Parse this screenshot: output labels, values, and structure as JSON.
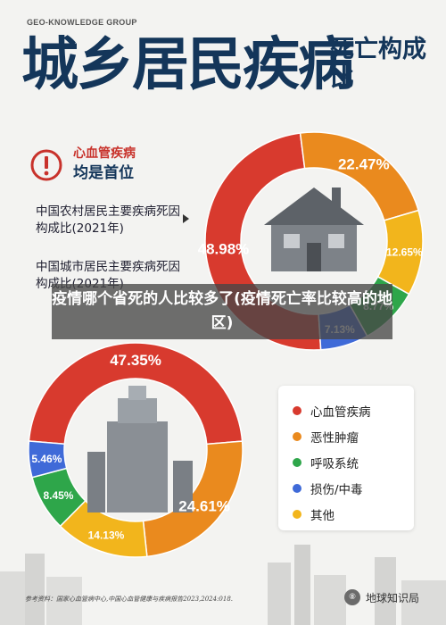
{
  "brand": "GEO-KNOWLEDGE GROUP",
  "title_main": "城乡居民疾病",
  "title_side": "死亡构成比",
  "warn": {
    "title": "心血管疾病",
    "subtitle": "均是首位"
  },
  "rural_label": "中国农村居民主要疾病死因构成比(2021年)",
  "urban_label": "中国城市居民主要疾病死因构成比(2021年)",
  "overlay_caption": "疫情哪个省死的人比较多了(疫情死亡率比较高的地区)",
  "legend": [
    {
      "label": "心血管疾病",
      "color": "#d83a2e"
    },
    {
      "label": "恶性肿瘤",
      "color": "#ea8a1e"
    },
    {
      "label": "呼吸系统",
      "color": "#2ea64a"
    },
    {
      "label": "损伤/中毒",
      "color": "#3f6ad8"
    },
    {
      "label": "其他",
      "color": "#f2b51c"
    }
  ],
  "source": "参考资料：国家心血管病中心,中国心血管健康与疾病报告2023,2024:018.",
  "logo": {
    "glyph": "⑧",
    "text": "地球知识局"
  },
  "chart_data": [
    {
      "type": "pie",
      "title": "中国农村居民主要疾病死因构成比(2021年)",
      "categories": [
        "心血管疾病",
        "恶性肿瘤",
        "其他",
        "呼吸系统",
        "损伤/中毒"
      ],
      "values": [
        48.98,
        22.47,
        12.65,
        8.77,
        7.13
      ],
      "labels": [
        "48.98%",
        "22.47%",
        "12.65%",
        "8.77%",
        "7.13%"
      ],
      "colors": [
        "#d83a2e",
        "#ea8a1e",
        "#f2b51c",
        "#2ea64a",
        "#3f6ad8"
      ]
    },
    {
      "type": "pie",
      "title": "中国城市居民主要疾病死因构成比(2021年)",
      "categories": [
        "心血管疾病",
        "恶性肿瘤",
        "其他",
        "呼吸系统",
        "损伤/中毒"
      ],
      "values": [
        47.35,
        24.61,
        14.13,
        8.45,
        5.46
      ],
      "labels": [
        "47.35%",
        "24.61%",
        "14.13%",
        "8.45%",
        "5.46%"
      ],
      "colors": [
        "#d83a2e",
        "#ea8a1e",
        "#f2b51c",
        "#2ea64a",
        "#3f6ad8"
      ]
    }
  ]
}
